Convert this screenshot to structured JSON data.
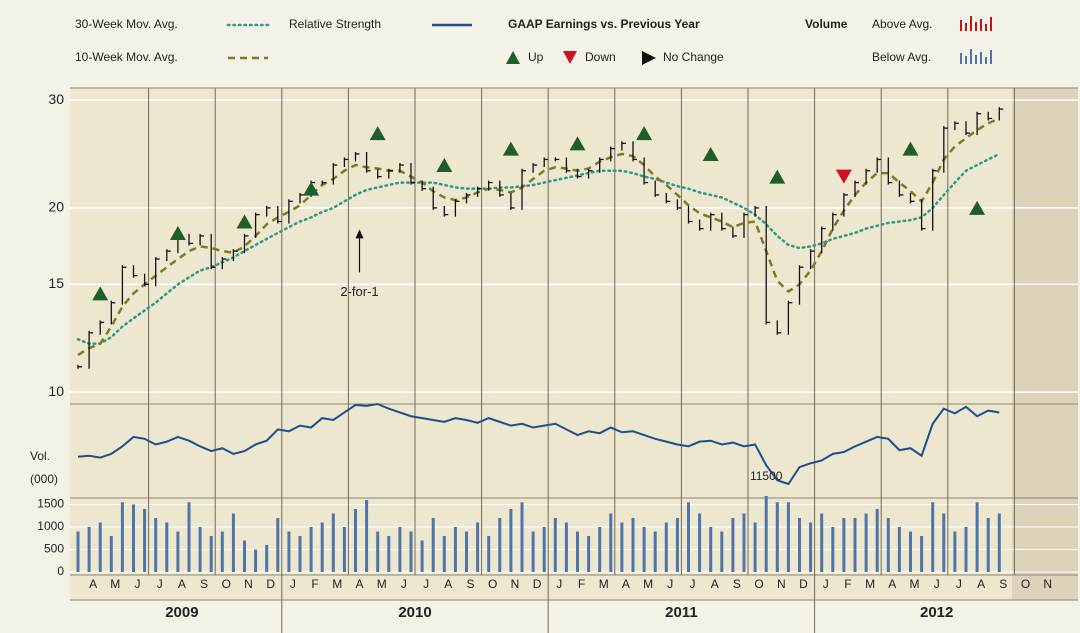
{
  "chart_data": {
    "type": "stock",
    "legend": {
      "ma30": "30-Week Mov. Avg.",
      "ma10": "10-Week Mov. Avg.",
      "rs": "Relative Strength",
      "earnings": "GAAP Earnings vs. Previous Year",
      "up": "Up",
      "down": "Down",
      "nochange": "No Change",
      "volume": "Volume",
      "above": "Above Avg.",
      "below": "Below Avg."
    },
    "years": [
      {
        "year": "2009",
        "months": [
          "A",
          "M",
          "J",
          "J",
          "A",
          "S",
          "O",
          "N",
          "D"
        ]
      },
      {
        "year": "2010",
        "months": [
          "J",
          "F",
          "M",
          "A",
          "M",
          "J",
          "J",
          "A",
          "S",
          "O",
          "N",
          "D"
        ]
      },
      {
        "year": "2011",
        "months": [
          "J",
          "F",
          "M",
          "A",
          "M",
          "J",
          "J",
          "A",
          "S",
          "O",
          "N",
          "D"
        ]
      },
      {
        "year": "2012",
        "months": [
          "J",
          "F",
          "M",
          "A",
          "M",
          "J",
          "J",
          "A",
          "S",
          "O",
          "N"
        ]
      }
    ],
    "price": {
      "color": "#111111",
      "values": [
        11,
        12.5,
        13,
        14,
        16,
        15.5,
        15,
        16.5,
        17,
        18,
        17.5,
        18,
        16,
        16.5,
        17,
        18,
        19.5,
        20,
        19,
        20.5,
        21,
        22,
        22,
        23.5,
        24,
        24.5,
        23,
        22.5,
        23,
        23.5,
        22,
        21.5,
        20,
        19.5,
        20.5,
        21,
        21.5,
        22,
        21,
        20,
        23,
        23.5,
        24,
        24,
        23,
        22.5,
        23,
        24,
        25,
        25.5,
        24,
        22,
        21,
        20.5,
        20,
        19,
        18.5,
        19.5,
        18.5,
        18,
        19.5,
        20,
        13,
        12.5,
        14,
        16,
        17,
        18.5,
        19.5,
        21,
        22,
        23,
        24,
        22,
        21,
        20.5,
        18.5,
        23,
        27,
        27.5,
        26.5,
        28.5,
        28,
        29
      ]
    },
    "ma30": {
      "color": "#2a9a8a",
      "values": [
        12.2,
        12.0,
        12.0,
        12.3,
        12.8,
        13.2,
        13.6,
        14.0,
        14.5,
        15.0,
        15.4,
        15.8,
        16.0,
        16.3,
        16.6,
        17.0,
        17.4,
        17.8,
        18.2,
        18.6,
        19.0,
        19.3,
        19.7,
        20.0,
        20.5,
        21.0,
        21.4,
        21.6,
        21.8,
        22.0,
        22.0,
        22.0,
        22.0,
        21.8,
        21.6,
        21.5,
        21.5,
        21.5,
        21.6,
        21.6,
        21.7,
        21.8,
        22.0,
        22.2,
        22.4,
        22.6,
        22.8,
        23.0,
        23.0,
        23.0,
        22.8,
        22.5,
        22.3,
        22.0,
        21.7,
        21.5,
        21.2,
        21.0,
        20.8,
        20.4,
        20.0,
        19.5,
        18.8,
        18.0,
        17.4,
        17.2,
        17.3,
        17.5,
        17.8,
        18.0,
        18.2,
        18.5,
        18.7,
        18.9,
        19.0,
        19.1,
        19.3,
        20.0,
        21.0,
        22.0,
        23.0,
        23.5,
        24.0,
        24.5
      ]
    },
    "ma10": {
      "color": "#7d7a22",
      "values": [
        11.5,
        11.8,
        12.0,
        12.8,
        13.8,
        14.5,
        15.0,
        15.5,
        16.0,
        16.5,
        17.0,
        17.3,
        17.2,
        17.0,
        16.9,
        17.3,
        18.0,
        18.8,
        19.3,
        19.7,
        20.2,
        21.0,
        21.8,
        22.3,
        23.0,
        23.5,
        23.3,
        23.2,
        23.0,
        23.0,
        22.5,
        22.0,
        21.3,
        20.8,
        20.6,
        20.8,
        21.2,
        21.5,
        21.4,
        21.2,
        21.6,
        22.3,
        23.0,
        23.3,
        23.2,
        23.0,
        23.2,
        23.8,
        24.2,
        24.5,
        24.3,
        23.5,
        22.5,
        21.8,
        21.0,
        20.2,
        19.6,
        19.3,
        19.0,
        18.6,
        18.9,
        19.0,
        17.0,
        15.2,
        14.6,
        15.0,
        15.8,
        17.0,
        18.5,
        19.8,
        21.0,
        22.0,
        22.8,
        22.8,
        22.0,
        21.3,
        20.5,
        22.0,
        24.0,
        25.2,
        26.0,
        26.8,
        27.5,
        28.0
      ]
    },
    "rs": {
      "color": "#1f4e8c",
      "values": [
        39,
        40,
        38,
        42,
        50,
        60,
        58,
        52,
        55,
        60,
        56,
        50,
        45,
        48,
        42,
        45,
        52,
        56,
        68,
        66,
        72,
        70,
        80,
        78,
        86,
        94,
        93,
        95,
        90,
        86,
        82,
        80,
        78,
        76,
        80,
        78,
        75,
        80,
        76,
        72,
        74,
        70,
        72,
        74,
        68,
        62,
        66,
        64,
        70,
        65,
        66,
        62,
        58,
        55,
        52,
        50,
        55,
        56,
        52,
        54,
        50,
        52,
        30,
        14,
        10,
        28,
        32,
        35,
        42,
        44,
        50,
        55,
        60,
        58,
        46,
        48,
        40,
        74,
        90,
        85,
        92,
        82,
        88,
        86
      ]
    },
    "volume": {
      "color": "#4f74a8",
      "values": [
        900,
        1000,
        1100,
        800,
        1550,
        1500,
        1400,
        1200,
        1100,
        900,
        1550,
        1000,
        800,
        900,
        1300,
        700,
        500,
        600,
        1200,
        900,
        800,
        1000,
        1100,
        1300,
        1000,
        1400,
        1600,
        900,
        800,
        1000,
        900,
        700,
        1200,
        800,
        1000,
        900,
        1100,
        800,
        1200,
        1400,
        1550,
        900,
        1000,
        1200,
        1100,
        900,
        800,
        1000,
        1300,
        1100,
        1200,
        1000,
        900,
        1100,
        1200,
        1550,
        1300,
        1000,
        900,
        1200,
        1300,
        1100,
        11500,
        1550,
        1550,
        1200,
        1100,
        1300,
        1000,
        1200,
        1200,
        1300,
        1400,
        1200,
        1000,
        900,
        800,
        1550,
        1300,
        900,
        1000,
        1550,
        1200,
        1300
      ]
    },
    "volume_label": "Vol.",
    "volume_unit": "(000)",
    "ylim": [
      9.6,
      31.4
    ],
    "yticks": [
      10,
      15,
      20,
      30
    ],
    "log_y": true,
    "vol_ylim": [
      0,
      1600
    ],
    "vol_yticks": [
      0,
      500,
      1000,
      1500
    ],
    "earnings": [
      {
        "point": 2,
        "value": 14.5,
        "direction": "up"
      },
      {
        "point": 9,
        "value": 18.2,
        "direction": "up"
      },
      {
        "point": 15,
        "value": 19,
        "direction": "up"
      },
      {
        "point": 21,
        "value": 21.5,
        "direction": "up"
      },
      {
        "point": 27,
        "value": 26.5,
        "direction": "up"
      },
      {
        "point": 33,
        "value": 23.5,
        "direction": "up"
      },
      {
        "point": 39,
        "value": 25,
        "direction": "up"
      },
      {
        "point": 45,
        "value": 25.5,
        "direction": "up"
      },
      {
        "point": 51,
        "value": 26.5,
        "direction": "up"
      },
      {
        "point": 57,
        "value": 24.5,
        "direction": "up"
      },
      {
        "point": 63,
        "value": 22.5,
        "direction": "up"
      },
      {
        "point": 69,
        "value": 22.5,
        "direction": "down"
      },
      {
        "point": 75,
        "value": 25,
        "direction": "up"
      },
      {
        "point": 81,
        "value": 20,
        "direction": "up"
      }
    ],
    "annotations": [
      {
        "text": "2-for-1",
        "point": 25,
        "value": 15
      },
      {
        "text": "11500",
        "point": 62
      }
    ]
  }
}
